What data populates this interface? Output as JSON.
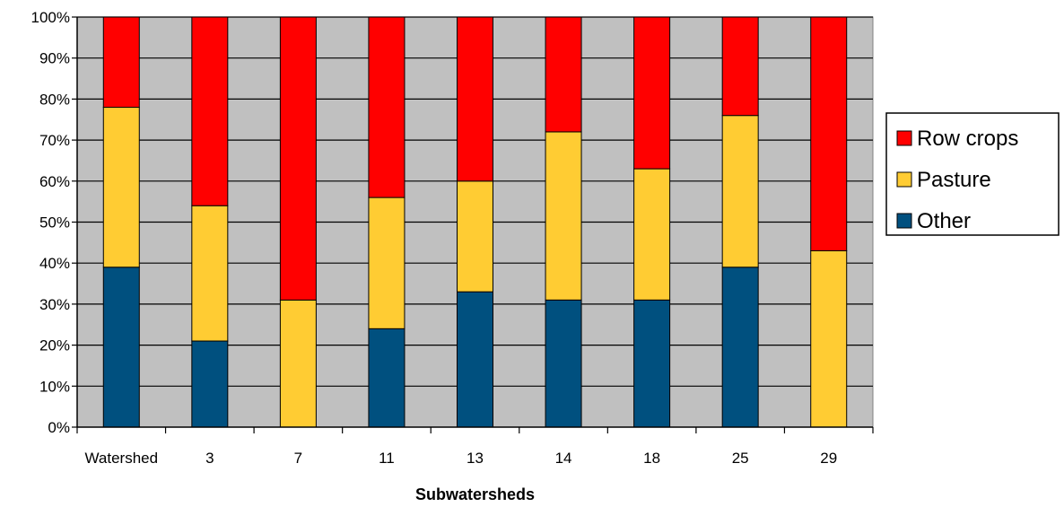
{
  "chart_data": {
    "type": "bar",
    "stacked": true,
    "normalized_percent": true,
    "title": "",
    "xlabel": "Subwatersheds",
    "ylabel": "",
    "ylim": [
      0,
      100
    ],
    "yticks": [
      "0%",
      "10%",
      "20%",
      "30%",
      "40%",
      "50%",
      "60%",
      "70%",
      "80%",
      "90%",
      "100%"
    ],
    "categories": [
      "Watershed",
      "3",
      "7",
      "11",
      "13",
      "14",
      "18",
      "25",
      "29"
    ],
    "series": [
      {
        "name": "Other",
        "color": "#00507F",
        "values": [
          39,
          21,
          0,
          24,
          33,
          31,
          31,
          39,
          0
        ]
      },
      {
        "name": "Pasture",
        "color": "#FFCC33",
        "values": [
          39,
          33,
          31,
          32,
          27,
          41,
          32,
          37,
          43
        ]
      },
      {
        "name": "Row crops",
        "color": "#FF0000",
        "values": [
          22,
          46,
          69,
          44,
          40,
          28,
          37,
          24,
          57
        ]
      }
    ],
    "legend_order": [
      "Row crops",
      "Pasture",
      "Other"
    ],
    "legend_position": "right",
    "grid": true,
    "plot_background": "#C0C0C0"
  }
}
